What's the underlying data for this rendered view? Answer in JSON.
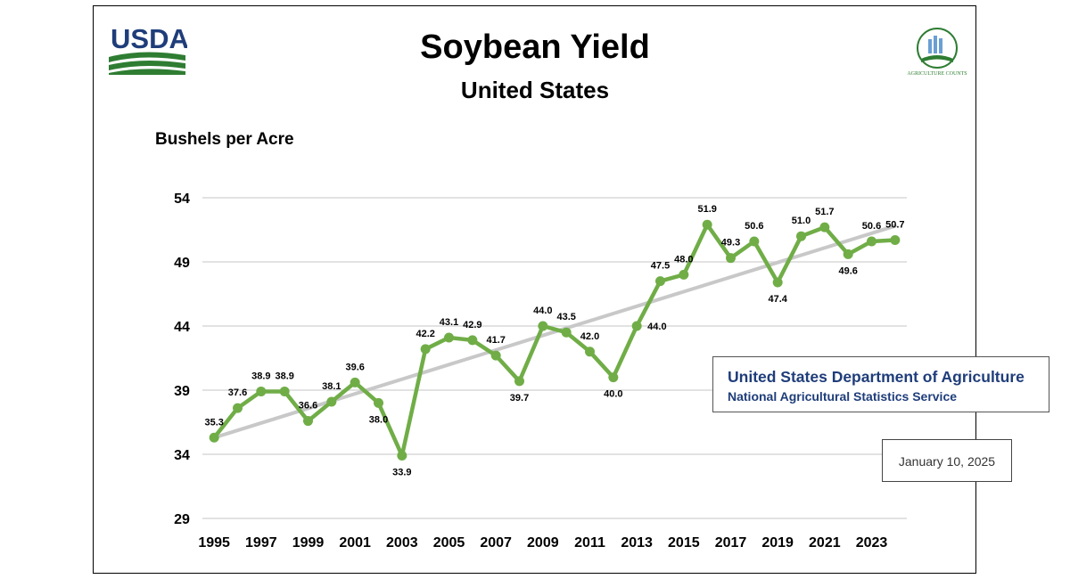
{
  "header": {
    "title": "Soybean Yield",
    "subtitle": "United States",
    "usda_logo_text": "USDA",
    "ag_counts_logo_text": "AGRICULTURE COUNTS"
  },
  "agency": {
    "name": "United States Department of Agriculture",
    "service": "National Agricultural Statistics Service"
  },
  "date": "January 10, 2025",
  "colors": {
    "line": "#70ad47",
    "trend": "#c8c8c8",
    "usda_blue": "#1f3d7a",
    "usda_green": "#2e7d32"
  },
  "chart_data": {
    "type": "line",
    "title": "Soybean Yield",
    "subtitle": "United States",
    "ylabel": "Bushels per Acre",
    "xlabel": "",
    "ylim": [
      29,
      54
    ],
    "yticks": [
      29,
      34,
      39,
      44,
      49,
      54
    ],
    "x_tick_labels": [
      "1995",
      "1997",
      "1999",
      "2001",
      "2003",
      "2005",
      "2007",
      "2009",
      "2011",
      "2013",
      "2015",
      "2017",
      "2019",
      "2021",
      "2023"
    ],
    "grid": true,
    "x": [
      1995,
      1996,
      1997,
      1998,
      1999,
      2000,
      2001,
      2002,
      2003,
      2004,
      2005,
      2006,
      2007,
      2008,
      2009,
      2010,
      2011,
      2012,
      2013,
      2014,
      2015,
      2016,
      2017,
      2018,
      2019,
      2020,
      2021,
      2022,
      2023,
      2024
    ],
    "series": [
      {
        "values": [
          35.3,
          37.6,
          38.9,
          38.9,
          36.6,
          38.1,
          39.6,
          38.0,
          33.9,
          42.2,
          43.1,
          42.9,
          41.7,
          39.7,
          44.0,
          43.5,
          42.0,
          40.0,
          44.0,
          47.5,
          48.0,
          51.9,
          49.3,
          50.6,
          47.4,
          51.0,
          51.7,
          49.6,
          50.6,
          50.7
        ],
        "labels": [
          "35.3",
          "37.6",
          "38.9",
          "38.9",
          "36.6",
          "38.1",
          "39.6",
          "38.0",
          "33.9",
          "42.2",
          "43.1",
          "42.9",
          "41.7",
          "39.7",
          "44.0",
          "43.5",
          "42.0",
          "40.0",
          "44.0",
          "47.5",
          "48.0",
          "51.9",
          "49.3",
          "50.6",
          "47.4",
          "51.0",
          "51.7",
          "49.6",
          "50.6",
          "50.7"
        ],
        "label_positions": [
          "above",
          "above",
          "above",
          "above",
          "above",
          "above",
          "above",
          "below",
          "below",
          "above",
          "above",
          "above",
          "above",
          "below",
          "above",
          "above",
          "above",
          "below",
          "right",
          "above",
          "above",
          "above",
          "above",
          "above",
          "below",
          "above",
          "above",
          "below",
          "above",
          "above"
        ]
      }
    ],
    "trendline": {
      "x": [
        1995,
        2024
      ],
      "y": [
        35.3,
        51.8
      ]
    }
  }
}
